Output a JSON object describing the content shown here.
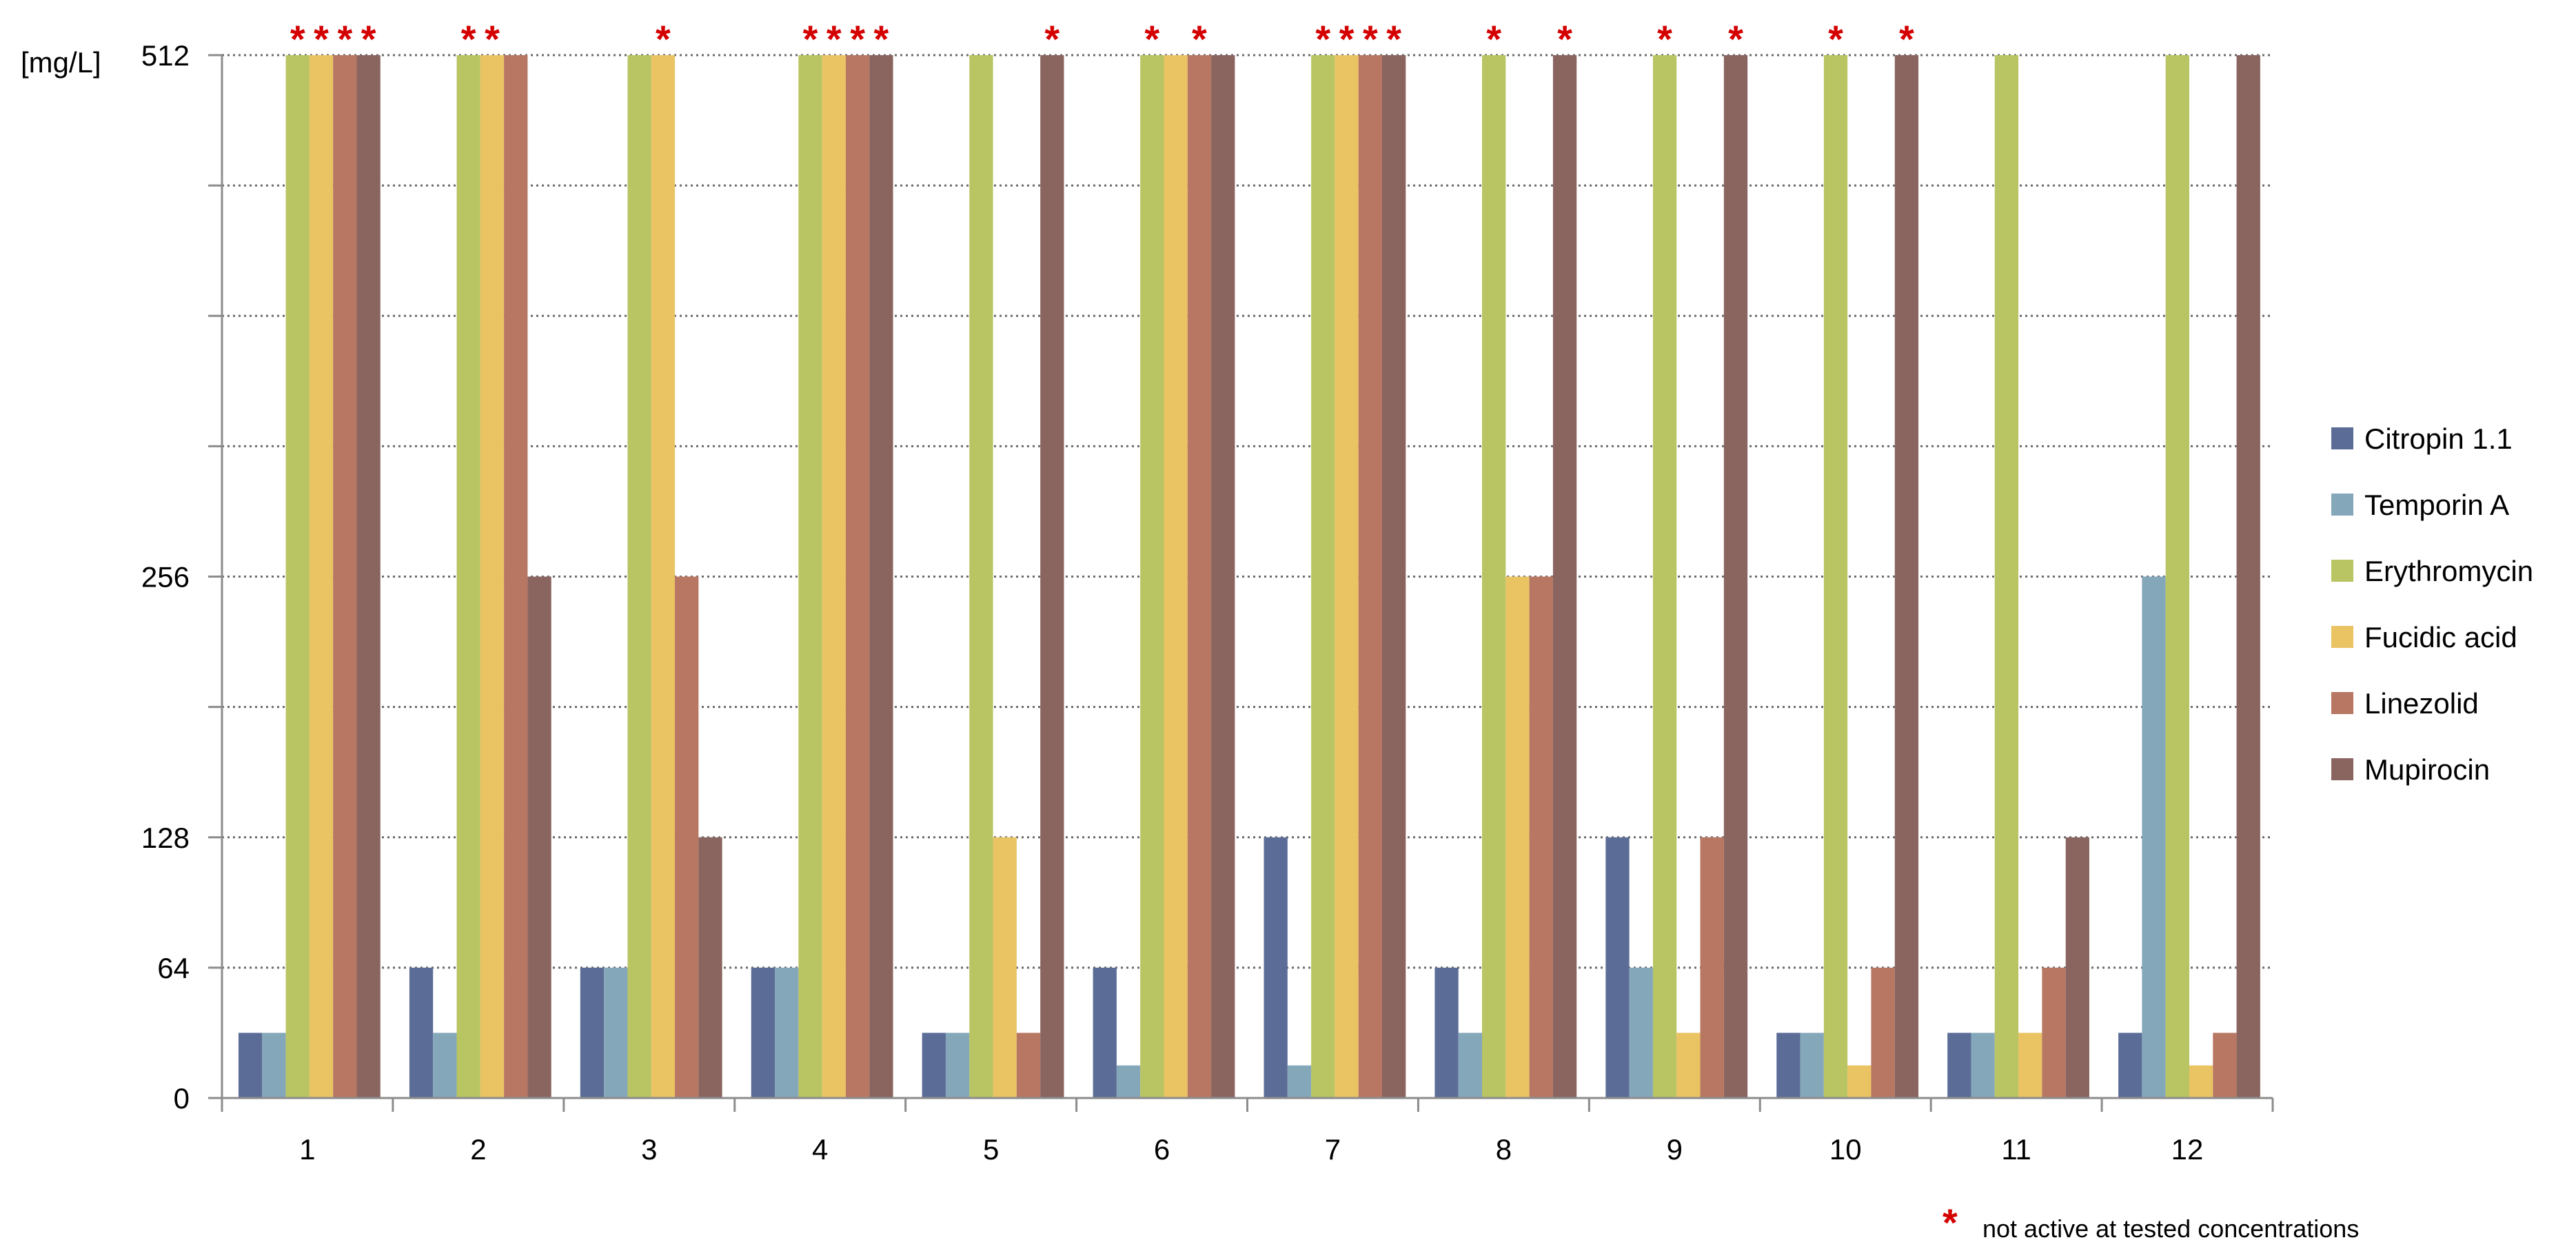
{
  "chart_data": {
    "type": "bar",
    "ylabel": "[mg/L]",
    "ylim": [
      0,
      512
    ],
    "y_ticks": [
      {
        "value": 0,
        "label": "0"
      },
      {
        "value": 64,
        "label": "64"
      },
      {
        "value": 128,
        "label": "128"
      },
      {
        "value": 256,
        "label": "256"
      },
      {
        "value": 512,
        "label": "512"
      }
    ],
    "categories": [
      "1",
      "2",
      "3",
      "4",
      "5",
      "6",
      "7",
      "8",
      "9",
      "10",
      "11",
      "12"
    ],
    "series": [
      {
        "name": "Citropin 1.1",
        "color": "#5b6c97",
        "values": [
          32,
          64,
          64,
          64,
          32,
          64,
          128,
          64,
          128,
          32,
          32,
          32
        ]
      },
      {
        "name": "Temporin A",
        "color": "#85a7ba",
        "values": [
          32,
          32,
          64,
          64,
          32,
          16,
          16,
          32,
          64,
          32,
          32,
          256
        ]
      },
      {
        "name": "Erythromycin",
        "color": "#b9c463",
        "values": [
          512,
          512,
          512,
          512,
          512,
          512,
          512,
          512,
          512,
          512,
          512,
          512
        ]
      },
      {
        "name": "Fucidic acid",
        "color": "#eac363",
        "values": [
          512,
          512,
          512,
          512,
          128,
          512,
          512,
          256,
          32,
          16,
          32,
          16
        ]
      },
      {
        "name": "Linezolid",
        "color": "#b87763",
        "values": [
          512,
          512,
          256,
          512,
          32,
          512,
          512,
          256,
          128,
          64,
          64,
          32
        ]
      },
      {
        "name": "Mupirocin",
        "color": "#8a6560",
        "values": [
          512,
          256,
          128,
          512,
          512,
          512,
          512,
          512,
          512,
          512,
          128,
          512
        ]
      }
    ],
    "not_active": [
      [
        false,
        false,
        true,
        true,
        true,
        true
      ],
      [
        false,
        false,
        true,
        true,
        false,
        false
      ],
      [
        false,
        false,
        false,
        true,
        false,
        false
      ],
      [
        false,
        false,
        true,
        true,
        true,
        true
      ],
      [
        false,
        false,
        false,
        false,
        false,
        true
      ],
      [
        false,
        false,
        true,
        false,
        true,
        false
      ],
      [
        false,
        false,
        true,
        true,
        true,
        true
      ],
      [
        false,
        false,
        true,
        false,
        false,
        true
      ],
      [
        false,
        false,
        true,
        false,
        false,
        true
      ],
      [
        false,
        false,
        true,
        false,
        false,
        true
      ],
      [
        false,
        false,
        false,
        false,
        false,
        false
      ],
      [
        false,
        false,
        false,
        false,
        false,
        false
      ]
    ],
    "grid": "horizontal dotted",
    "legend_position": "right",
    "annotation": {
      "symbol": "*",
      "text": "not active at tested concentrations"
    }
  }
}
